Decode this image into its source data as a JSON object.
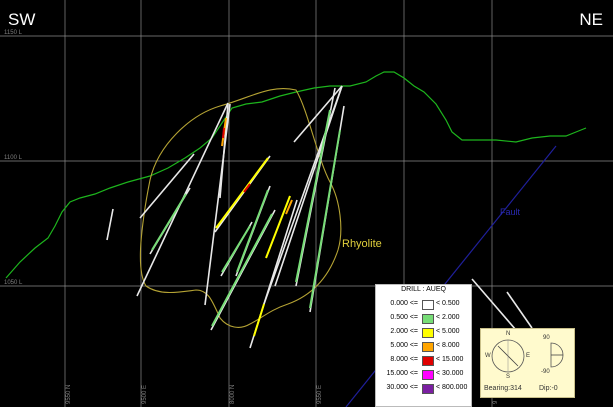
{
  "section": {
    "left_label": "SW",
    "right_label": "NE",
    "elevation_labels": [
      "1150 L",
      "1100 L",
      "1050 L"
    ],
    "easting_labels": [
      "9550 N",
      "9500 E",
      "8000 N",
      "9550 E",
      "9"
    ],
    "rhyolite_label": "Rhyolite",
    "fault_label": "Fault",
    "colors": {
      "background": "#000000",
      "topography": "#1db51d",
      "rhyolite_outline": "#b5a334",
      "rhyolite_label": "#e0cf3c",
      "fault": "#1f1f9a",
      "fault_label": "#2a2ab2",
      "grid": "#8c8c8c",
      "drillhole": "#e8e8e8"
    }
  },
  "legend": {
    "title": "DRILL : AUEQ",
    "rows": [
      {
        "from": "0.000 <=",
        "to": "< 0.500",
        "color": "#ffffff"
      },
      {
        "from": "0.500 <=",
        "to": "< 2.000",
        "color": "#77dd77"
      },
      {
        "from": "2.000 <=",
        "to": "< 5.000",
        "color": "#ffff00"
      },
      {
        "from": "5.000 <=",
        "to": "< 8.000",
        "color": "#ffa500"
      },
      {
        "from": "8.000 <=",
        "to": "< 15.000",
        "color": "#e00000"
      },
      {
        "from": "15.000 <=",
        "to": "< 30.000",
        "color": "#ff00ff"
      },
      {
        "from": "30.000 <=",
        "to": "< 800.000",
        "color": "#7b1fa2"
      }
    ]
  },
  "compass": {
    "north": "N",
    "south": "S",
    "east": "E",
    "west": "W",
    "bearing_text": "Bearing:314",
    "dip_text": "Dip:-0",
    "dip_top": "90",
    "dip_bottom": "-90"
  }
}
